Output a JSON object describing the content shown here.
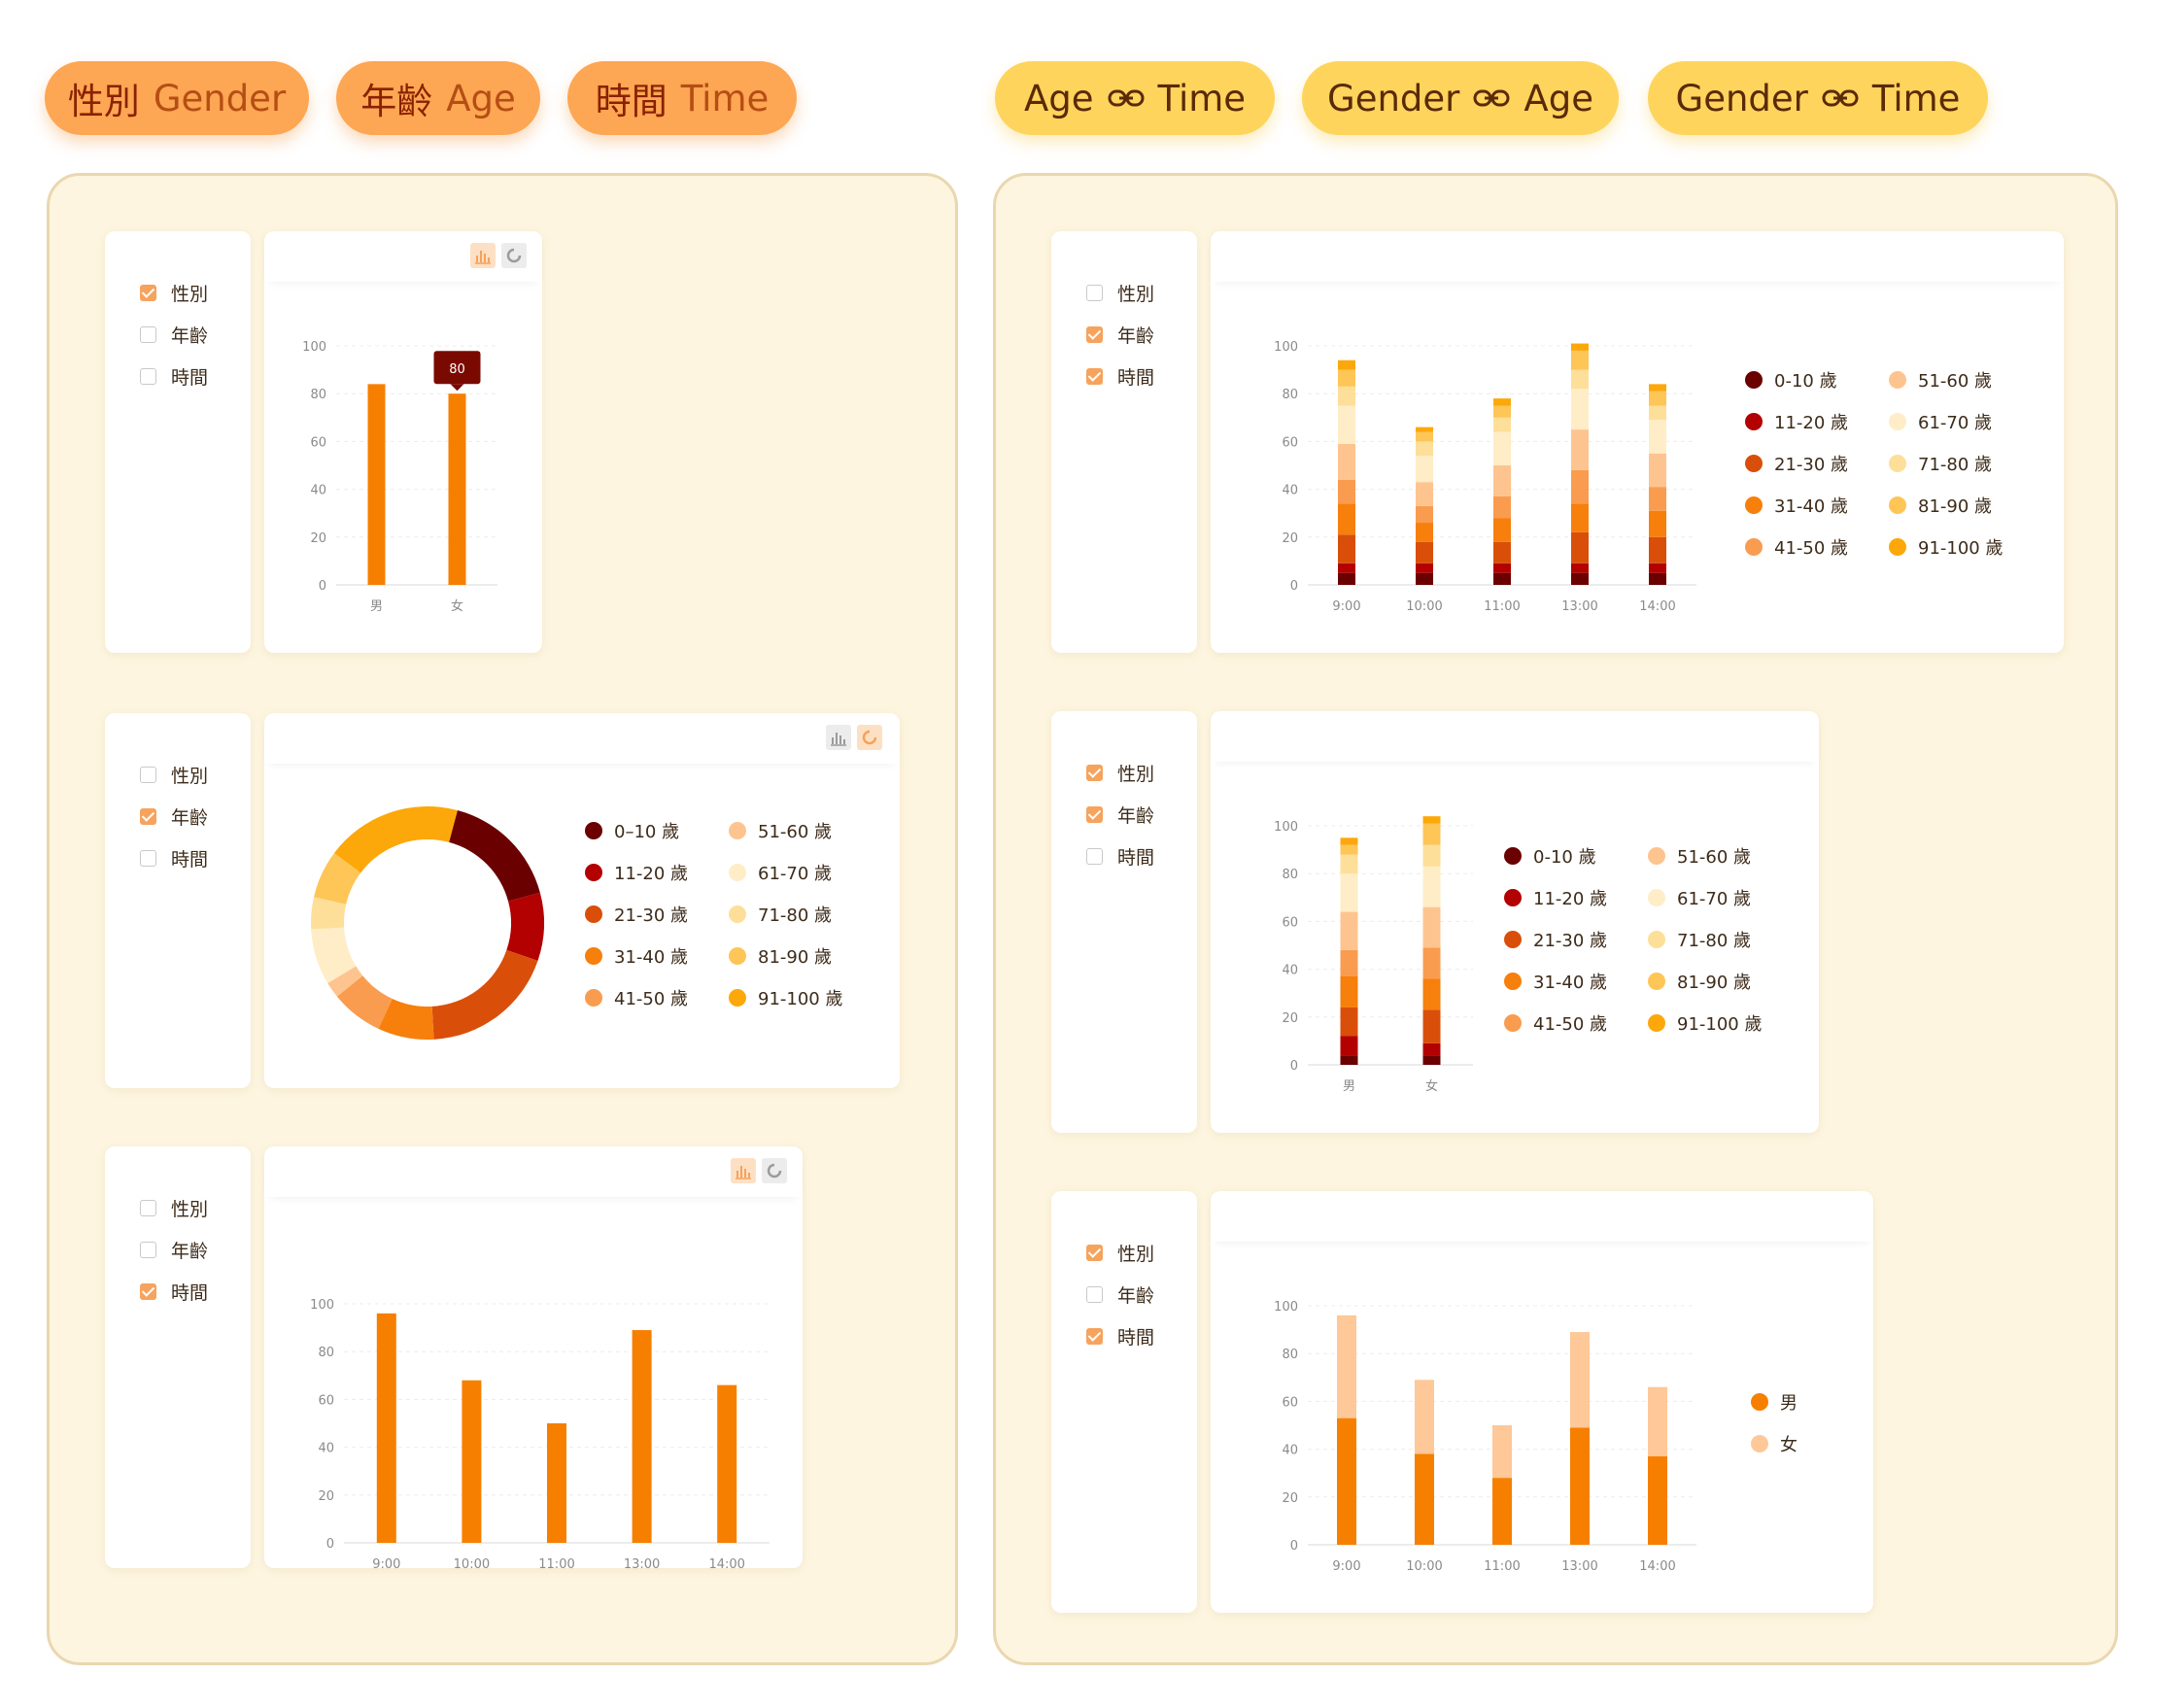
{
  "tabs_left": [
    {
      "zh": "性別",
      "en": "Gender"
    },
    {
      "zh": "年齡",
      "en": "Age"
    },
    {
      "zh": "時間",
      "en": "Time"
    }
  ],
  "tabs_right": [
    {
      "a": "Age",
      "b": "Time"
    },
    {
      "a": "Gender",
      "b": "Age"
    },
    {
      "a": "Gender",
      "b": "Time"
    }
  ],
  "filter_labels": {
    "gender": "性別",
    "age": "年齡",
    "time": "時間"
  },
  "colors": {
    "accent": "#f77f00",
    "panel_bg": "#fdf5df",
    "pill_orange": "#fda653",
    "pill_yellow": "#fed45c",
    "age_colors": [
      "#6b0000",
      "#b30000",
      "#d94f0a",
      "#f77f0c",
      "#f99c50",
      "#fec48f",
      "#feedc7",
      "#fedf99",
      "#fec557",
      "#fca80a"
    ],
    "gender_colors": [
      "#f77f00",
      "#fec898"
    ]
  },
  "age_legend": [
    "0-10 歲",
    "11-20 歲",
    "21-30 歲",
    "31-40 歲",
    "41-50 歲",
    "51-60 歲",
    "61-70 歲",
    "71-80 歲",
    "81-90 歲",
    "91-100 歲"
  ],
  "age_legend_donut": [
    "0–10 歲",
    "11-20 歲",
    "21-30 歲",
    "31-40 歲",
    "41-50 歲",
    "51-60 歲",
    "61-70 歲",
    "71-80 歲",
    "81-90 歲",
    "91-100 歲"
  ],
  "gender_legend": [
    "男",
    "女"
  ],
  "cards": {
    "gender": {
      "checked": {
        "gender": true,
        "age": false,
        "time": false
      },
      "chart_data": {
        "type": "bar",
        "categories": [
          "男",
          "女"
        ],
        "values": [
          84,
          80
        ],
        "ylim": [
          0,
          100
        ],
        "yticks": [
          0,
          20,
          40,
          60,
          80,
          100
        ],
        "tooltip": {
          "category": "女",
          "value": "80"
        }
      }
    },
    "age": {
      "checked": {
        "gender": false,
        "age": true,
        "time": false
      },
      "chart_data": {
        "type": "pie",
        "donut": true,
        "labels": [
          "0-10 歲",
          "11-20 歲",
          "21-30 歲",
          "31-40 歲",
          "41-50 歲",
          "51-60 歲",
          "61-70 歲",
          "71-80 歲",
          "81-90 歲",
          "91-100 歲"
        ],
        "values": [
          15,
          8.5,
          17,
          7,
          6.5,
          2,
          7,
          4,
          6,
          17
        ]
      }
    },
    "time": {
      "checked": {
        "gender": false,
        "age": false,
        "time": true
      },
      "chart_data": {
        "type": "bar",
        "categories": [
          "9:00",
          "10:00",
          "11:00",
          "13:00",
          "14:00"
        ],
        "values": [
          96,
          68,
          50,
          89,
          66
        ],
        "ylim": [
          0,
          100
        ],
        "yticks": [
          0,
          20,
          40,
          60,
          80,
          100
        ]
      }
    },
    "age_time": {
      "checked": {
        "gender": false,
        "age": true,
        "time": true
      },
      "chart_data": {
        "type": "bar",
        "stacked": true,
        "categories": [
          "9:00",
          "10:00",
          "11:00",
          "13:00",
          "14:00"
        ],
        "series": [
          {
            "name": "0-10 歲",
            "values": [
              5,
              5,
              5,
              5,
              5
            ]
          },
          {
            "name": "11-20 歲",
            "values": [
              4,
              4,
              4,
              4,
              4
            ]
          },
          {
            "name": "21-30 歲",
            "values": [
              12,
              9,
              9,
              13,
              11
            ]
          },
          {
            "name": "31-40 歲",
            "values": [
              13,
              8,
              10,
              12,
              11
            ]
          },
          {
            "name": "41-50 歲",
            "values": [
              10,
              7,
              9,
              14,
              10
            ]
          },
          {
            "name": "51-60 歲",
            "values": [
              15,
              10,
              13,
              17,
              14
            ]
          },
          {
            "name": "61-70 歲",
            "values": [
              16,
              11,
              14,
              17,
              14
            ]
          },
          {
            "name": "71-80 歲",
            "values": [
              8,
              6,
              6,
              8,
              6
            ]
          },
          {
            "name": "81-90 歲",
            "values": [
              7,
              4,
              5,
              8,
              6
            ]
          },
          {
            "name": "91-100 歲",
            "values": [
              4,
              2,
              3,
              3,
              3
            ]
          }
        ],
        "ylim": [
          0,
          100
        ],
        "yticks": [
          0,
          20,
          40,
          60,
          80,
          100
        ]
      }
    },
    "gender_age": {
      "checked": {
        "gender": true,
        "age": true,
        "time": false
      },
      "chart_data": {
        "type": "bar",
        "stacked": true,
        "categories": [
          "男",
          "女"
        ],
        "series": [
          {
            "name": "0-10 歲",
            "values": [
              4,
              4
            ]
          },
          {
            "name": "11-20 歲",
            "values": [
              8,
              5
            ]
          },
          {
            "name": "21-30 歲",
            "values": [
              12,
              14
            ]
          },
          {
            "name": "31-40 歲",
            "values": [
              13,
              13
            ]
          },
          {
            "name": "41-50 歲",
            "values": [
              11,
              13
            ]
          },
          {
            "name": "51-60 歲",
            "values": [
              16,
              17
            ]
          },
          {
            "name": "61-70 歲",
            "values": [
              16,
              17
            ]
          },
          {
            "name": "71-80 歲",
            "values": [
              8,
              9
            ]
          },
          {
            "name": "81-90 歲",
            "values": [
              4,
              9
            ]
          },
          {
            "name": "91-100 歲",
            "values": [
              3,
              3
            ]
          }
        ],
        "ylim": [
          0,
          100
        ],
        "yticks": [
          0,
          20,
          40,
          60,
          80,
          100
        ]
      }
    },
    "gender_time": {
      "checked": {
        "gender": true,
        "age": false,
        "time": true
      },
      "chart_data": {
        "type": "bar",
        "stacked": true,
        "categories": [
          "9:00",
          "10:00",
          "11:00",
          "13:00",
          "14:00"
        ],
        "series": [
          {
            "name": "男",
            "values": [
              53,
              38,
              28,
              49,
              37
            ]
          },
          {
            "name": "女",
            "values": [
              43,
              31,
              22,
              40,
              29
            ]
          }
        ],
        "ylim": [
          0,
          100
        ],
        "yticks": [
          0,
          20,
          40,
          60,
          80,
          100
        ]
      }
    }
  }
}
